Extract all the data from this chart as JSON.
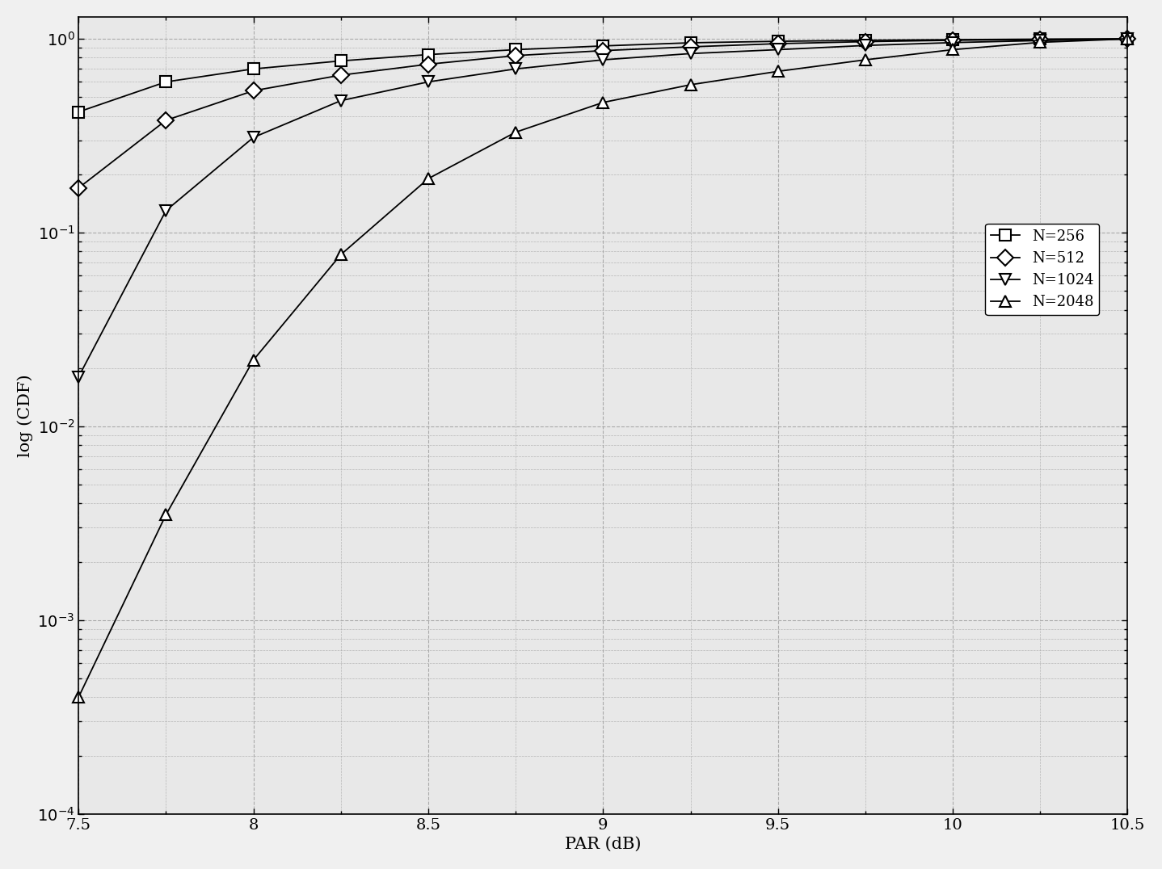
{
  "title": "",
  "xlabel": "PAR (dB)",
  "ylabel": "log (CDF)",
  "xlim": [
    7.5,
    10.5
  ],
  "ylim_log": [
    0.0001,
    1.3
  ],
  "series": [
    {
      "label": "N=256",
      "marker": "s",
      "x": [
        7.5,
        7.75,
        8.0,
        8.25,
        8.5,
        8.75,
        9.0,
        9.25,
        9.5,
        9.75,
        10.0,
        10.25,
        10.5
      ],
      "y": [
        0.42,
        0.6,
        0.7,
        0.77,
        0.83,
        0.88,
        0.92,
        0.955,
        0.972,
        0.983,
        0.991,
        0.997,
        1.0
      ]
    },
    {
      "label": "N=512",
      "marker": "D",
      "x": [
        7.5,
        7.75,
        8.0,
        8.25,
        8.5,
        8.75,
        9.0,
        9.25,
        9.5,
        9.75,
        10.0,
        10.25,
        10.5
      ],
      "y": [
        0.17,
        0.38,
        0.54,
        0.65,
        0.74,
        0.82,
        0.87,
        0.91,
        0.945,
        0.968,
        0.984,
        0.994,
        1.0
      ]
    },
    {
      "label": "N=1024",
      "marker": "v",
      "x": [
        7.5,
        7.75,
        8.0,
        8.25,
        8.5,
        8.75,
        9.0,
        9.25,
        9.5,
        9.75,
        10.0,
        10.25,
        10.5
      ],
      "y": [
        0.018,
        0.13,
        0.31,
        0.48,
        0.6,
        0.7,
        0.78,
        0.84,
        0.88,
        0.925,
        0.957,
        0.981,
        1.0
      ]
    },
    {
      "label": "N=2048",
      "marker": "^",
      "x": [
        7.5,
        7.75,
        8.0,
        8.25,
        8.5,
        8.75,
        9.0,
        9.25,
        9.5,
        9.75,
        10.0,
        10.25,
        10.5
      ],
      "y": [
        0.0004,
        0.0035,
        0.022,
        0.077,
        0.19,
        0.33,
        0.47,
        0.58,
        0.68,
        0.78,
        0.88,
        0.96,
        1.0
      ]
    }
  ],
  "line_color": "#000000",
  "background_color": "#f0f0f0",
  "plot_bg_color": "#e8e8e8",
  "grid_color": "#aaaaaa",
  "legend_loc": "upper right",
  "tick_fontsize": 14,
  "label_fontsize": 15,
  "legend_fontsize": 13,
  "xticks": [
    7.5,
    8.0,
    8.5,
    9.0,
    9.5,
    10.0,
    10.5
  ],
  "xtick_labels": [
    "7.5",
    "8",
    "8.5",
    "9",
    "9.5",
    "10",
    "10.5"
  ]
}
